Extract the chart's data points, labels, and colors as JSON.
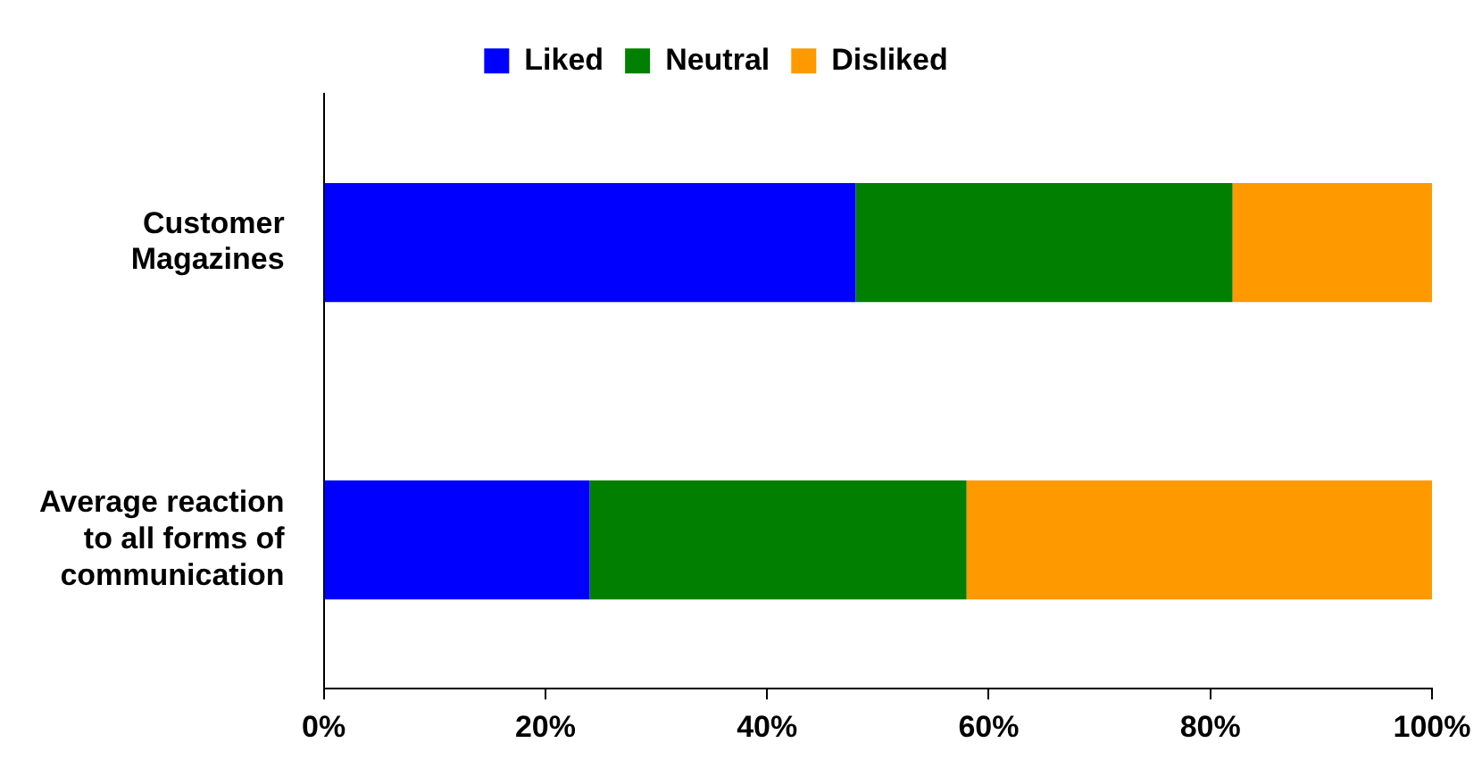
{
  "chart_data": {
    "type": "bar",
    "orientation": "horizontal",
    "stacked": true,
    "categories": [
      "Customer Magazines",
      "Average reaction to all forms of communication"
    ],
    "series": [
      {
        "name": "Liked",
        "color": "#0000ff",
        "values": [
          48,
          24
        ]
      },
      {
        "name": "Neutral",
        "color": "#007f00",
        "values": [
          34,
          34
        ]
      },
      {
        "name": "Disliked",
        "color": "#ff9900",
        "values": [
          18,
          42
        ]
      }
    ],
    "xlim": [
      0,
      100
    ],
    "xticks": [
      {
        "value": 0,
        "label": "0%"
      },
      {
        "value": 20,
        "label": "20%"
      },
      {
        "value": 40,
        "label": "40%"
      },
      {
        "value": 60,
        "label": "60%"
      },
      {
        "value": 80,
        "label": "80%"
      },
      {
        "value": 100,
        "label": "100%"
      }
    ],
    "grid": false,
    "legend": "top"
  }
}
